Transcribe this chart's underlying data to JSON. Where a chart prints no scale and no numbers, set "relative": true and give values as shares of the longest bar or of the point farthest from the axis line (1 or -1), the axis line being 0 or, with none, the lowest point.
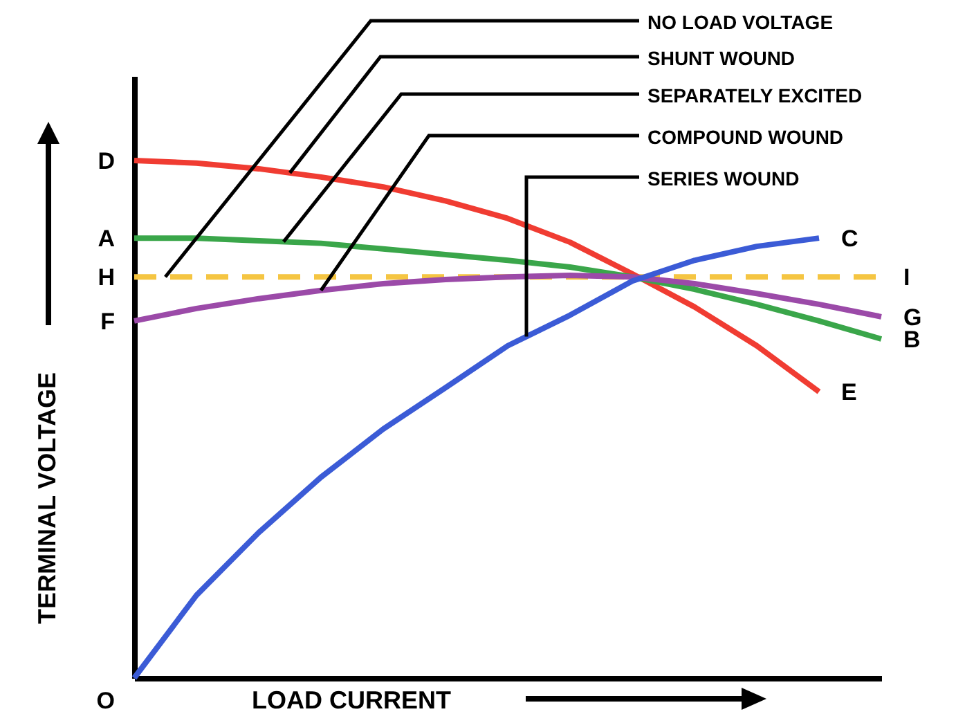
{
  "chart_data": {
    "type": "line",
    "relative": true,
    "xlabel": "LOAD CURRENT",
    "ylabel": "TERMINAL VOLTAGE",
    "marker": "none",
    "grid": false,
    "categories": [
      null,
      null,
      null,
      null,
      null,
      null,
      null,
      null,
      null,
      null,
      null,
      null,
      null
    ],
    "series": [
      {
        "name": "NO LOAD VOLTAGE",
        "color": "#f5c542",
        "line_style": "dashed",
        "values": [
          0.775,
          0.775,
          0.775,
          0.775,
          0.775,
          0.775,
          0.775,
          0.775,
          0.775,
          0.775,
          0.775,
          0.775,
          0.775
        ]
      },
      {
        "name": "SHUNT WOUND",
        "color": "#f03c32",
        "values": [
          1,
          0.995,
          0.984,
          0.968,
          0.949,
          0.922,
          0.888,
          0.842,
          0.781,
          0.717,
          0.642,
          0.553,
          null
        ]
      },
      {
        "name": "SEPARATELY EXCITED",
        "color": "#3aa64a",
        "values": [
          0.85,
          0.85,
          0.845,
          0.84,
          0.829,
          0.818,
          0.807,
          0.794,
          0.775,
          0.751,
          0.722,
          0.69,
          0.655
        ]
      },
      {
        "name": "COMPOUND WOUND",
        "color": "#9b4aa8",
        "values": [
          0.69,
          0.714,
          0.733,
          0.749,
          0.762,
          0.77,
          0.775,
          0.778,
          0.775,
          0.762,
          0.743,
          0.722,
          0.698
        ]
      },
      {
        "name": "SERIES WOUND",
        "color": "#3b5bd6",
        "values": [
          0,
          0.16,
          0.281,
          0.388,
          0.481,
          0.561,
          0.642,
          0.701,
          0.767,
          0.807,
          0.834,
          0.85,
          null
        ]
      }
    ],
    "annotations": [
      "D",
      "A",
      "H",
      "F",
      "O",
      "C",
      "I",
      "G",
      "B",
      "E"
    ]
  }
}
